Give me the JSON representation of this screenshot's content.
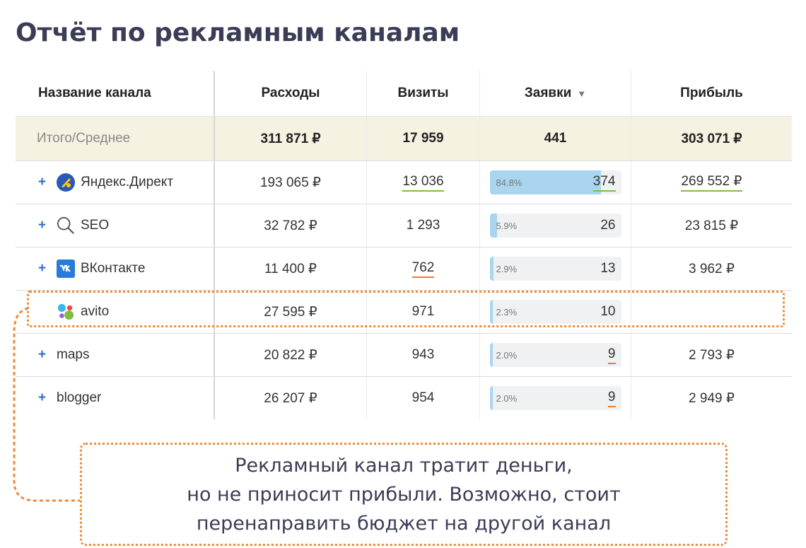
{
  "title": "Отчёт по рекламным каналам",
  "table": {
    "headers": {
      "channel": "Название канала",
      "expenses": "Расходы",
      "visits": "Визиты",
      "requests": "Заявки",
      "profit": "Прибыль",
      "sort_icon": "▼"
    },
    "total": {
      "label": "Итого/Среднее",
      "expenses": "311 871 ₽",
      "visits": "17 959",
      "requests": "441",
      "profit": "303 071 ₽"
    },
    "rows": [
      {
        "expand": "+",
        "icon": "yandex-direct-icon",
        "name": "Яндекс.Директ",
        "expenses": "193 065 ₽",
        "visits": "13 036",
        "pct": "84.8%",
        "pct_value": 84.8,
        "requests": "374",
        "profit": "269 552 ₽"
      },
      {
        "expand": "+",
        "icon": "magnifier-icon",
        "name": "SEO",
        "expenses": "32 782 ₽",
        "visits": "1 293",
        "pct": "5.9%",
        "pct_value": 5.9,
        "requests": "26",
        "profit": "23 815 ₽"
      },
      {
        "expand": "+",
        "icon": "vk-icon",
        "name": "ВКонтакте",
        "expenses": "11 400 ₽",
        "visits": "762",
        "pct": "2.9%",
        "pct_value": 2.9,
        "requests": "13",
        "profit": "3 962 ₽"
      },
      {
        "expand": "",
        "icon": "avito-icon",
        "name": "avito",
        "expenses": "27 595 ₽",
        "visits": "971",
        "pct": "2.3%",
        "pct_value": 2.3,
        "requests": "10",
        "profit": ""
      },
      {
        "expand": "+",
        "icon": "",
        "name": "maps",
        "expenses": "20 822 ₽",
        "visits": "943",
        "pct": "2.0%",
        "pct_value": 2.0,
        "requests": "9",
        "profit": "2 793 ₽"
      },
      {
        "expand": "+",
        "icon": "",
        "name": "blogger",
        "expenses": "26 207 ₽",
        "visits": "954",
        "pct": "2.0%",
        "pct_value": 2.0,
        "requests": "9",
        "profit": "2 949 ₽"
      }
    ]
  },
  "callout": {
    "line1": "Рекламный канал тратит деньги,",
    "line2": "но не приносит прибыли. Возможно, стоит",
    "line3": "перенаправить бюджет на другой канал"
  },
  "colors": {
    "accent_orange": "#ef8a3a",
    "bar_fill": "#a9d5ee",
    "underline_green": "#7bc043",
    "underline_orange": "#f07b33",
    "total_row_bg": "#f6f2e2"
  }
}
